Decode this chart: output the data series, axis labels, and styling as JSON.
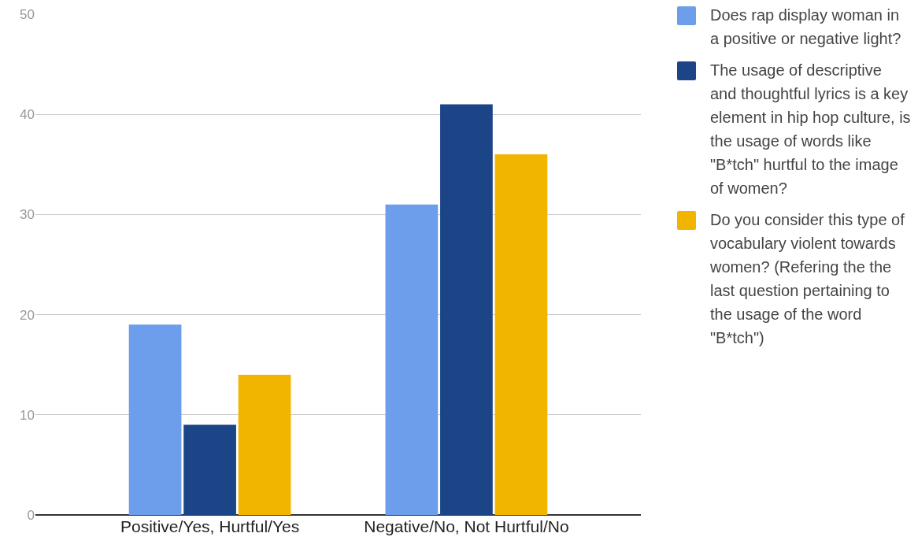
{
  "chart_data": {
    "type": "bar",
    "categories": [
      "Positive/Yes, Hurtful/Yes",
      "Negative/No, Not Hurtful/No"
    ],
    "series": [
      {
        "name": "Does rap display woman in a positive or negative light?",
        "color": "#6d9eeb",
        "values": [
          19,
          31
        ]
      },
      {
        "name": "The usage of descriptive and thoughtful lyrics is a key element in hip hop culture, is the usage of words like \"B*tch\" hurtful to the image of women?",
        "color": "#1c4587",
        "values": [
          9,
          41
        ]
      },
      {
        "name": "Do you consider this type of vocabulary violent towards women? (Refering the the last question pertaining to the usage of the word \"B*tch\")",
        "color": "#f1b500",
        "values": [
          14,
          36
        ]
      }
    ],
    "ylim": [
      0,
      50
    ],
    "yticks": [
      0,
      10,
      20,
      30,
      40,
      50
    ],
    "grid": "y",
    "legend": "right"
  }
}
